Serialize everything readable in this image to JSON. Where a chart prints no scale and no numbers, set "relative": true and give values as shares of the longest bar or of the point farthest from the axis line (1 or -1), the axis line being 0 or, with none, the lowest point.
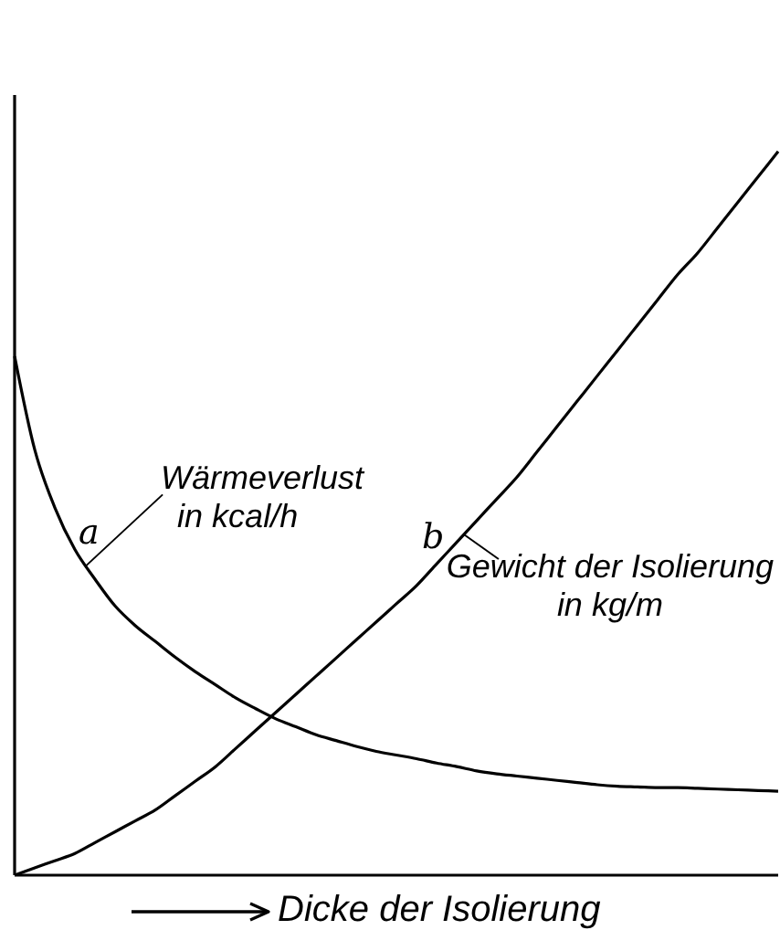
{
  "chart_data": {
    "type": "line",
    "xlabel": "Dicke der Isolierung",
    "relative": true,
    "marker": "none",
    "line_style": "solid",
    "categories": [
      null,
      null,
      null,
      null,
      null,
      null,
      null,
      null,
      null,
      null,
      null,
      null,
      null,
      null,
      null,
      null,
      null,
      null,
      null,
      null,
      null,
      null,
      null,
      null,
      null,
      null,
      null,
      null,
      null,
      null,
      null,
      null,
      null,
      null,
      null,
      null,
      null,
      null,
      null
    ],
    "series": [
      {
        "name": "a",
        "color": "#000000",
        "values": [
          0.717,
          0.588,
          0.508,
          0.45,
          0.409,
          0.372,
          0.345,
          0.323,
          0.301,
          0.281,
          0.263,
          0.245,
          0.23,
          0.216,
          0.205,
          0.194,
          0.186,
          0.178,
          0.171,
          0.166,
          0.161,
          0.155,
          0.15,
          0.144,
          0.14,
          0.137,
          0.134,
          0.131,
          0.128,
          0.125,
          0.123,
          0.122,
          0.121,
          0.121,
          0.12,
          0.119,
          0.118,
          0.117,
          0.116
        ]
      },
      {
        "name": "b",
        "color": "#000000",
        "values": [
          0,
          0.01,
          0.02,
          0.03,
          0.045,
          0.06,
          0.075,
          0.09,
          0.11,
          0.13,
          0.15,
          0.175,
          0.2,
          0.225,
          0.25,
          0.275,
          0.3,
          0.325,
          0.35,
          0.375,
          0.4,
          0.43,
          0.46,
          0.49,
          0.52,
          0.55,
          0.585,
          0.62,
          0.655,
          0.69,
          0.725,
          0.76,
          0.795,
          0.83,
          0.86,
          0.895,
          0.93,
          0.965,
          1
        ]
      }
    ],
    "annotations": [
      "Wärmeverlust\nin kcal/h",
      "Gewicht der Isolierung\nin kg/m"
    ]
  }
}
